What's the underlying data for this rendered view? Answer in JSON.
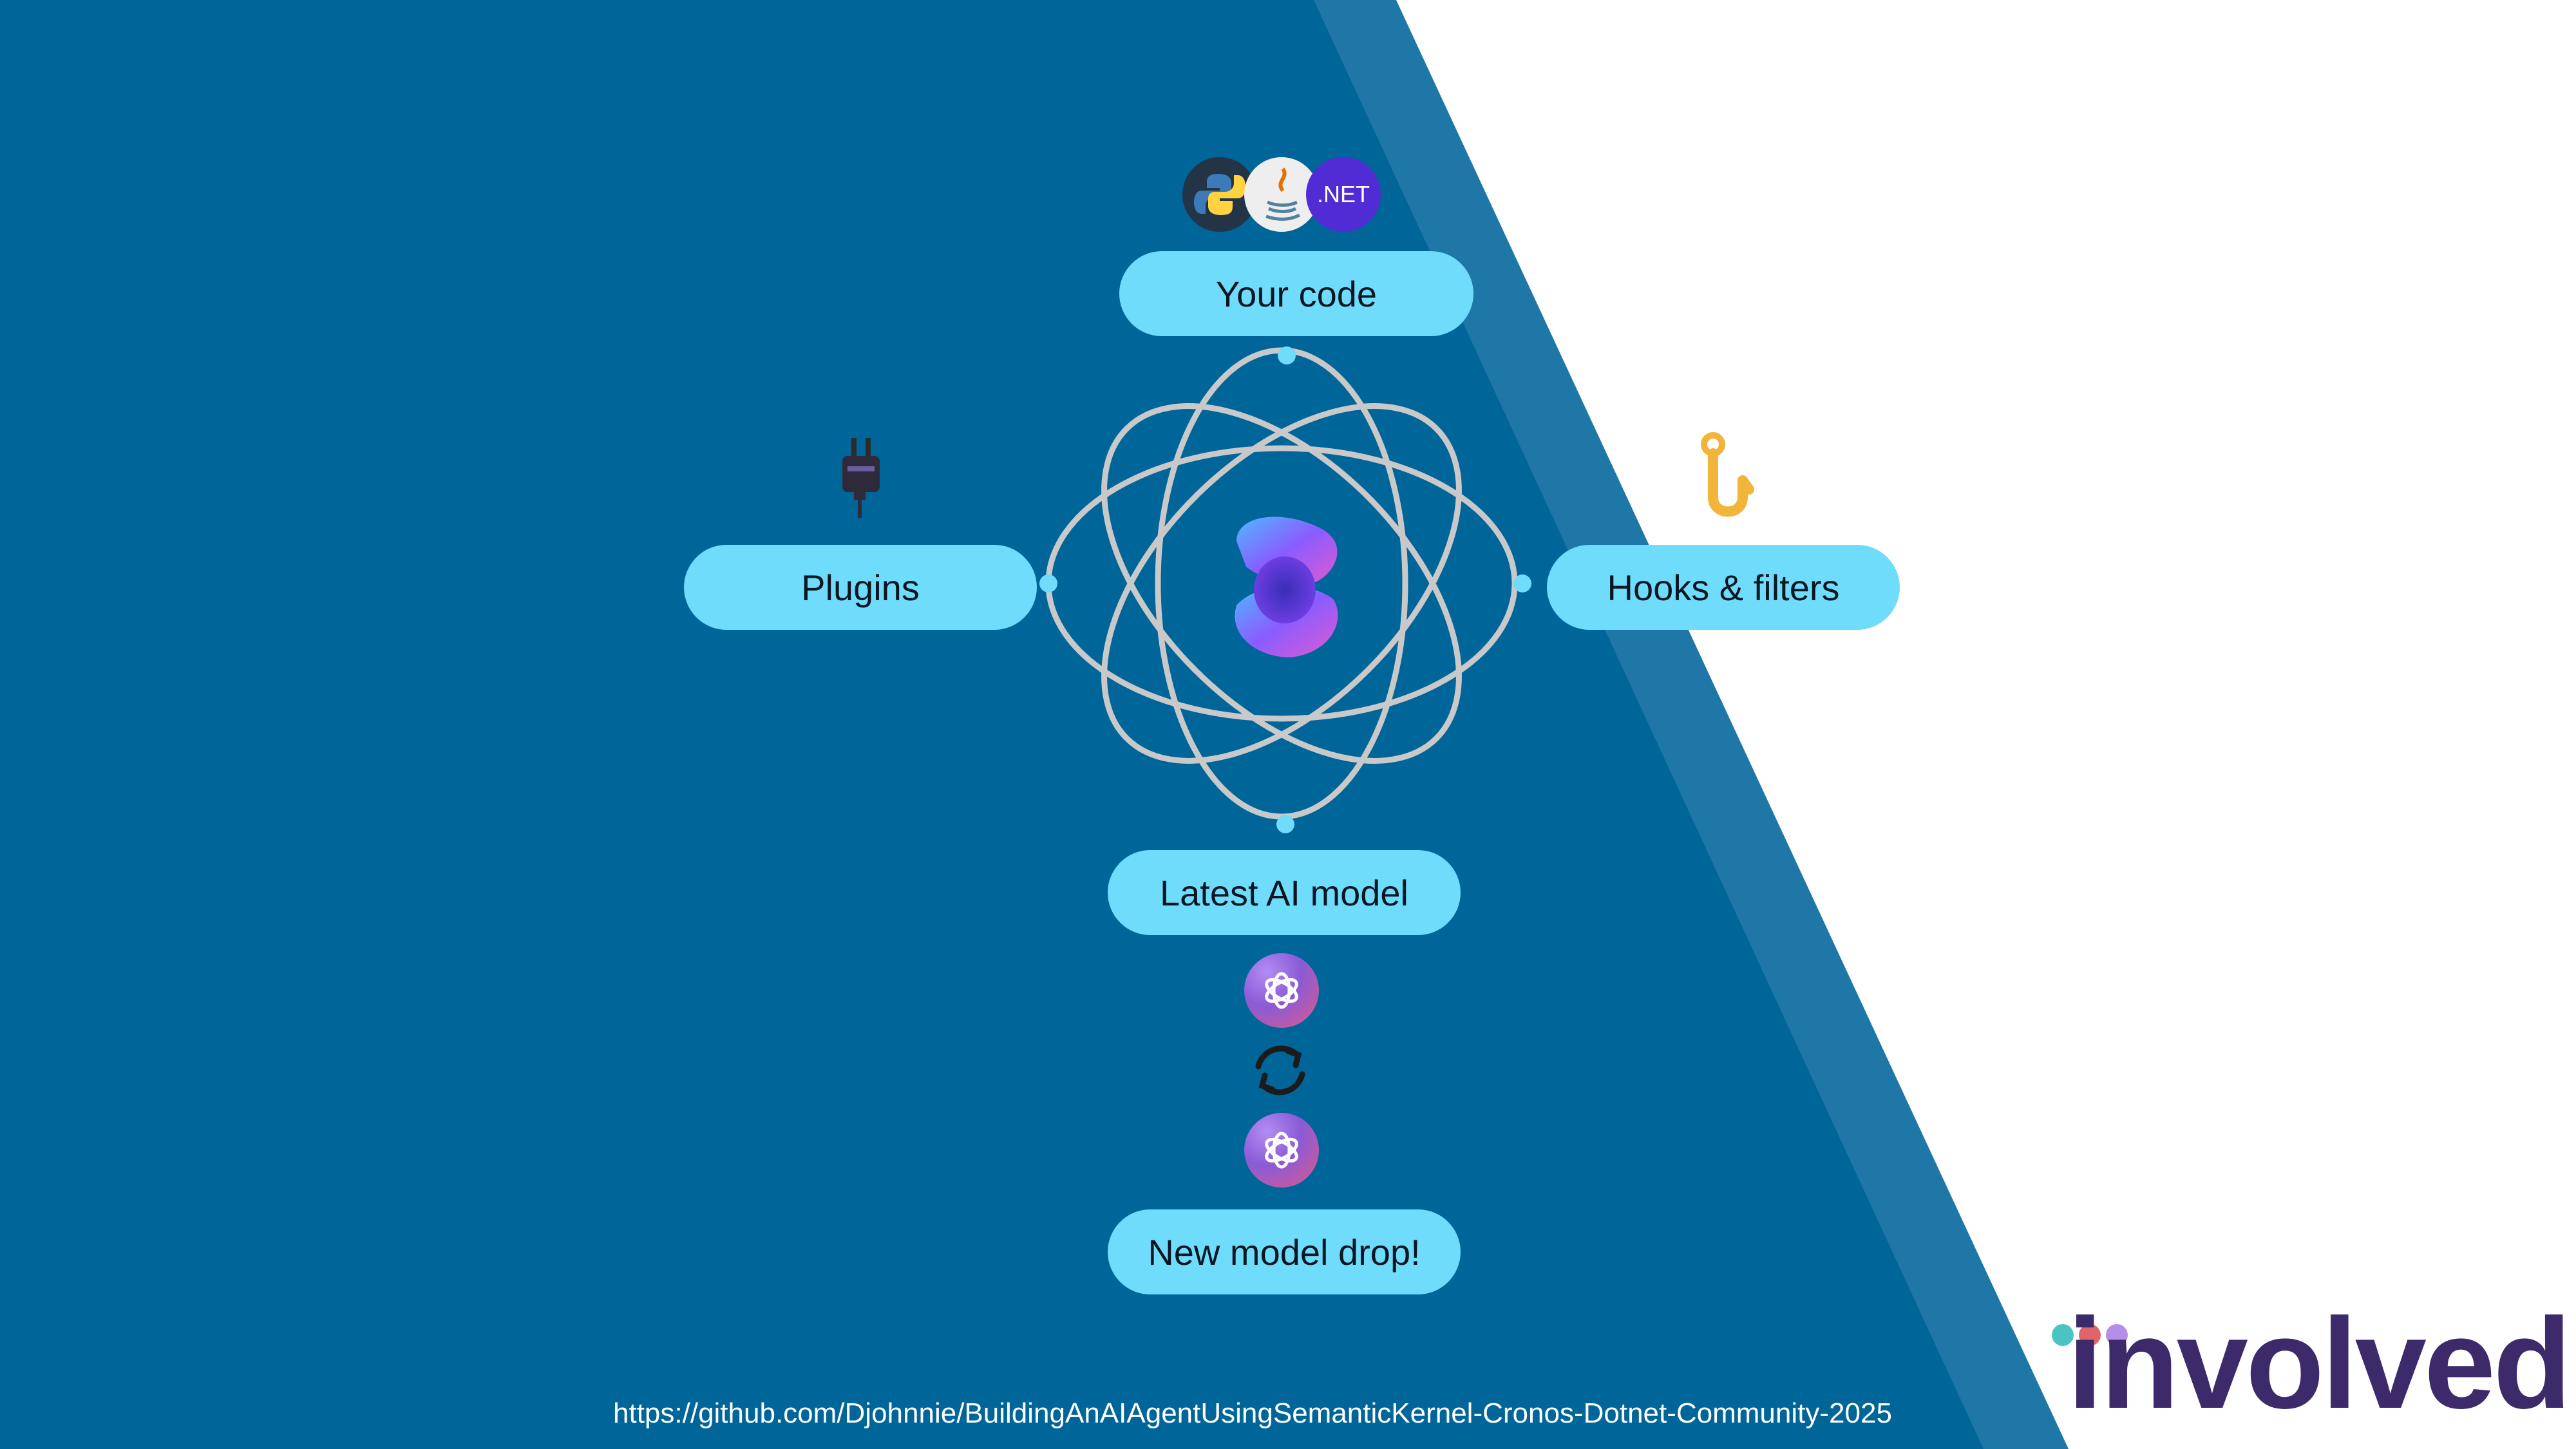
{
  "diagram": {
    "your_code": "Your code",
    "plugins": "Plugins",
    "hooks_filters": "Hooks & filters",
    "latest_model": "Latest AI model",
    "new_model_drop": "New model drop!",
    "dotnet_label": ".NET"
  },
  "footer": {
    "url": "https://github.com/Djohnnie/BuildingAnAIAgentUsingSemanticKernel-Cronos-Dotnet-Community-2025"
  },
  "logo": {
    "text": "involved",
    "dot_colors": [
      "#4bc3c4",
      "#e0656a",
      "#b58ee8"
    ]
  },
  "colors": {
    "background_blue": "#006598",
    "diagonal_band": "#1f77a8",
    "pill_fill": "#6fdcfb",
    "orbit_stroke": "#c9c9c9",
    "node_dot": "#6fdcfb",
    "logo_purple": "#3d2a6b"
  },
  "icons": {
    "languages": [
      "python-icon",
      "java-icon",
      "dotnet-icon"
    ],
    "plugins": "plug-icon",
    "hooks": "hook-icon",
    "center": "semantic-kernel-logo",
    "models": [
      "openai-icon",
      "refresh-icon",
      "openai-icon"
    ]
  }
}
